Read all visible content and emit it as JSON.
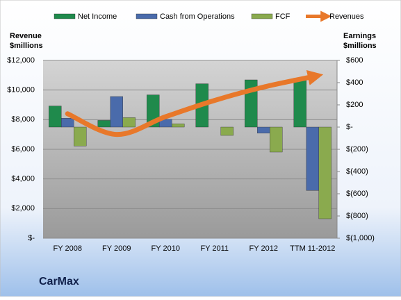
{
  "chart_data": {
    "type": "bar_line_combo",
    "title": "CarMax",
    "y_label": [
      "Revenue",
      "$millions"
    ],
    "y2_label": [
      "Earnings",
      "$millions"
    ],
    "categories": [
      "FY 2008",
      "FY 2009",
      "FY 2010",
      "FY 2011",
      "FY 2012",
      "TTM 11-2012"
    ],
    "ylim": [
      0,
      12000
    ],
    "yticks": [
      {
        "value": 0,
        "label": "$-"
      },
      {
        "value": 2000,
        "label": "$2,000"
      },
      {
        "value": 4000,
        "label": "$4,000"
      },
      {
        "value": 6000,
        "label": "$6,000"
      },
      {
        "value": 8000,
        "label": "$8,000"
      },
      {
        "value": 10000,
        "label": "$10,000"
      },
      {
        "value": 12000,
        "label": "$12,000"
      }
    ],
    "y2lim": [
      -1000,
      600
    ],
    "y2ticks": [
      {
        "value": -1000,
        "label": "$(1,000)"
      },
      {
        "value": -800,
        "label": "$(800)"
      },
      {
        "value": -600,
        "label": "$(600)"
      },
      {
        "value": -400,
        "label": "$(400)"
      },
      {
        "value": -200,
        "label": "$(200)"
      },
      {
        "value": 0,
        "label": "$-"
      },
      {
        "value": 200,
        "label": "$200"
      },
      {
        "value": 400,
        "label": "$400"
      },
      {
        "value": 600,
        "label": "$600"
      }
    ],
    "series": [
      {
        "name": "Net Income",
        "type": "bar",
        "axis": "y2",
        "color": "#1f8a4c",
        "values": [
          190,
          60,
          290,
          390,
          425,
          440
        ]
      },
      {
        "name": "Cash from Operations",
        "type": "bar",
        "axis": "y2",
        "color": "#4a6bab",
        "values": [
          80,
          275,
          70,
          0,
          -55,
          -570
        ]
      },
      {
        "name": "FCF",
        "type": "bar",
        "axis": "y2",
        "color": "#8aaa4e",
        "values": [
          -170,
          85,
          30,
          -75,
          -225,
          -825
        ]
      },
      {
        "name": "Revenues",
        "type": "line",
        "color": "#e8782a",
        "values": [
          8400,
          7000,
          8200,
          9300,
          10200,
          10900
        ]
      }
    ],
    "grid": true,
    "legend": "top"
  }
}
